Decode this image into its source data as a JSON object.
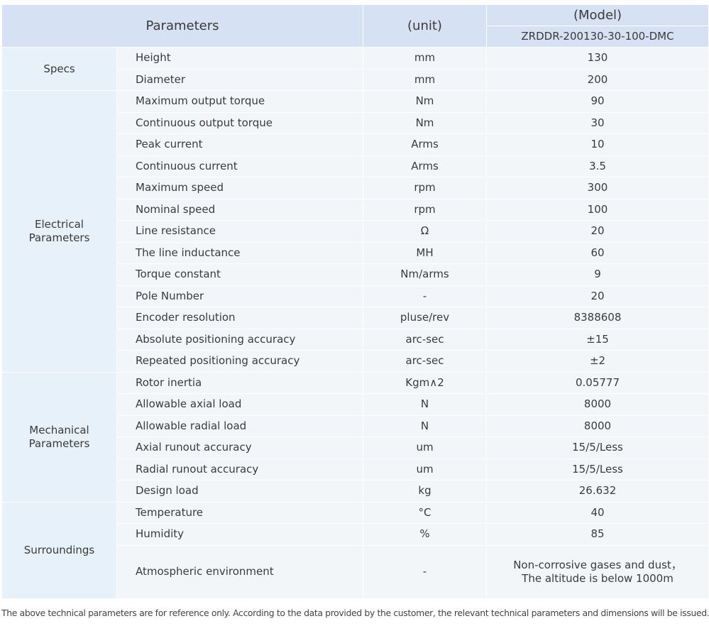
{
  "header": {
    "parameters": "Parameters",
    "unit": "(unit)",
    "model": "(Model)",
    "model_name": "ZRDDR-200130-30-100-DMC"
  },
  "groups": [
    {
      "name": "Specs",
      "rows": [
        [
          "Height",
          "mm",
          "130"
        ],
        [
          "Diameter",
          "mm",
          "200"
        ]
      ]
    },
    {
      "name": "Electrical Parameters",
      "rows": [
        [
          "Maximum output torque",
          "Nm",
          "90"
        ],
        [
          "Continuous output torque",
          "Nm",
          "30"
        ],
        [
          "Peak current",
          "Arms",
          "10"
        ],
        [
          "Continuous current",
          "Arms",
          "3.5"
        ],
        [
          "Maximum speed",
          "rpm",
          "300"
        ],
        [
          "Nominal speed",
          "rpm",
          "100"
        ],
        [
          "Line resistance",
          "Ω",
          "20"
        ],
        [
          "The line inductance",
          "MH",
          "60"
        ],
        [
          "Torque constant",
          "Nm/arms",
          "9"
        ],
        [
          "Pole Number",
          "-",
          "20"
        ],
        [
          "Encoder resolution",
          "pluse/rev",
          "8388608"
        ],
        [
          "Absolute positioning accuracy",
          "arc-sec",
          "±15"
        ],
        [
          "Repeated positioning accuracy",
          "arc-sec",
          "±2"
        ]
      ]
    },
    {
      "name": "Mechanical Parameters",
      "rows": [
        [
          "Rotor inertia",
          "Kgm∧2",
          "0.05777"
        ],
        [
          "Allowable axial load",
          "N",
          "8000"
        ],
        [
          "Allowable radial load",
          "N",
          "8000"
        ],
        [
          "Axial runout accuracy",
          "um",
          "15/5/Less"
        ],
        [
          "Radial runout accuracy",
          "um",
          "15/5/Less"
        ],
        [
          "Design load",
          "kg",
          "26.632"
        ]
      ]
    },
    {
      "name": "Surroundings",
      "rows": [
        [
          "Temperature",
          "°C",
          "40"
        ],
        [
          "Humidity",
          "%",
          "85"
        ],
        [
          "Atmospheric environment",
          "-",
          [
            "Non-corrosive gases and dust，",
            "The altitude is below 1000m"
          ]
        ]
      ]
    }
  ],
  "footnote": "The above technical parameters are for reference only. According to the data provided by the customer, the relevant technical parameters and dimensions will be issued."
}
